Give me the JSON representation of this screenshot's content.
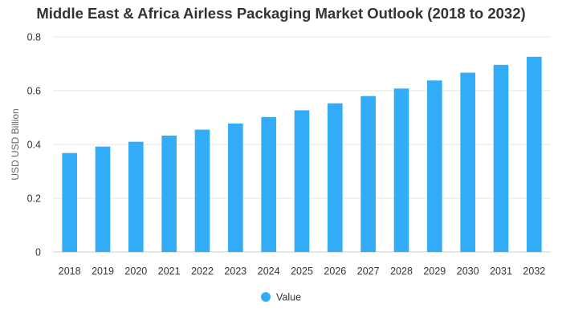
{
  "chart_data": {
    "type": "bar",
    "title": "Middle East & Africa Airless Packaging Market Outlook (2018 to 2032)",
    "ylabel": "USD USD Billion",
    "xlabel": "",
    "categories": [
      "2018",
      "2019",
      "2020",
      "2021",
      "2022",
      "2023",
      "2024",
      "2025",
      "2026",
      "2027",
      "2028",
      "2029",
      "2030",
      "2031",
      "2032"
    ],
    "series": [
      {
        "name": "Value",
        "values": [
          0.368,
          0.392,
          0.41,
          0.433,
          0.455,
          0.478,
          0.502,
          0.527,
          0.553,
          0.58,
          0.608,
          0.638,
          0.667,
          0.696,
          0.726
        ]
      }
    ],
    "ylim": [
      0,
      0.8
    ],
    "yticks": [
      "0",
      "0.2",
      "0.4",
      "0.6",
      "0.8"
    ],
    "grid": true,
    "legend": "bottom-center",
    "bar_color": "#33acf7"
  }
}
